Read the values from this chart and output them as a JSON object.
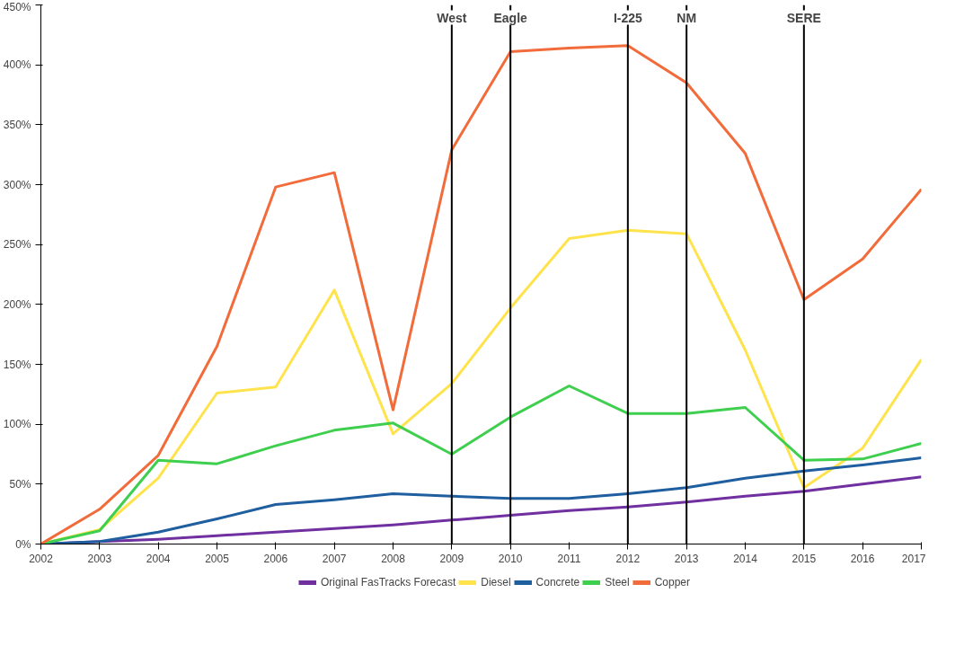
{
  "chart_data": {
    "type": "line",
    "x": [
      2002,
      2003,
      2004,
      2005,
      2006,
      2007,
      2008,
      2009,
      2010,
      2011,
      2012,
      2013,
      2014,
      2015,
      2016,
      2017
    ],
    "xlim": [
      2002,
      2017
    ],
    "xticks": [
      2002,
      2003,
      2004,
      2005,
      2006,
      2007,
      2008,
      2009,
      2010,
      2011,
      2012,
      2013,
      2014,
      2015,
      2016,
      2017
    ],
    "ylim": [
      0,
      450
    ],
    "yticks": [
      {
        "value": 0,
        "label": "0%"
      },
      {
        "value": 50,
        "label": "50%"
      },
      {
        "value": 100,
        "label": "100%"
      },
      {
        "value": 150,
        "label": "150%"
      },
      {
        "value": 200,
        "label": "200%"
      },
      {
        "value": 250,
        "label": "250%"
      },
      {
        "value": 300,
        "label": "300%"
      },
      {
        "value": 350,
        "label": "350%"
      },
      {
        "value": 400,
        "label": "400%"
      },
      {
        "value": 450,
        "label": "450%"
      }
    ],
    "grid": false,
    "legend": "bottom",
    "marker": "none",
    "line_style": "solid",
    "series": [
      {
        "name": "Original FasTracks Forecast",
        "color": "#7030a0",
        "values": [
          0,
          2,
          4,
          7,
          10,
          13,
          16,
          20,
          24,
          28,
          31,
          35,
          40,
          44,
          50,
          56
        ]
      },
      {
        "name": "Diesel",
        "color": "#ffe34d",
        "values": [
          0,
          12,
          55,
          126,
          131,
          212,
          92,
          134,
          197,
          255,
          262,
          259,
          162,
          47,
          80,
          154
        ]
      },
      {
        "name": "Concrete",
        "color": "#1f5f9f",
        "values": [
          0,
          2,
          10,
          21,
          33,
          37,
          42,
          40,
          38,
          38,
          42,
          47,
          55,
          61,
          66,
          72
        ]
      },
      {
        "name": "Steel",
        "color": "#3fcf4f",
        "values": [
          0,
          11,
          70,
          67,
          82,
          95,
          101,
          75,
          106,
          132,
          109,
          109,
          114,
          70,
          71,
          84
        ]
      },
      {
        "name": "Copper",
        "color": "#f26b3a",
        "values": [
          0,
          29,
          74,
          165,
          298,
          310,
          112,
          329,
          411,
          414,
          416,
          385,
          326,
          204,
          238,
          296
        ]
      }
    ],
    "ref_lines": [
      {
        "axis": "x",
        "value": 2009,
        "label": "West",
        "color": "#000000"
      },
      {
        "axis": "x",
        "value": 2010,
        "label": "Eagle",
        "color": "#000000"
      },
      {
        "axis": "x",
        "value": 2012,
        "label": "I-225",
        "color": "#000000"
      },
      {
        "axis": "x",
        "value": 2013,
        "label": "NM",
        "color": "#000000"
      },
      {
        "axis": "x",
        "value": 2015,
        "label": "SERE",
        "color": "#000000"
      }
    ]
  }
}
